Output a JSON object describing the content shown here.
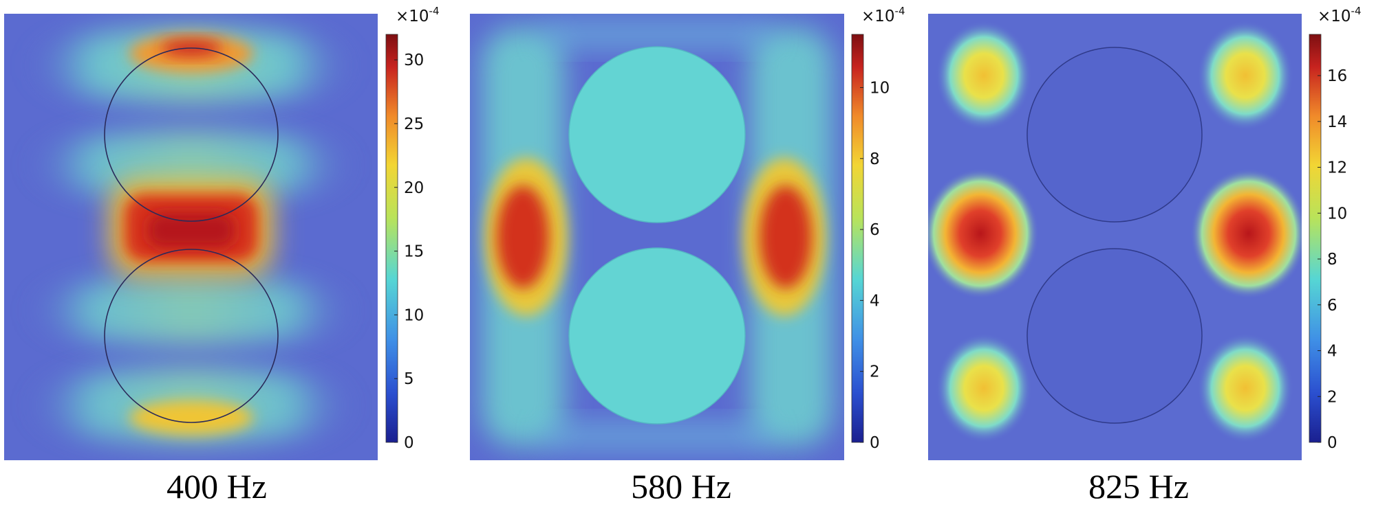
{
  "colors": {
    "colormap_stops": [
      "#1a1f8f",
      "#2b4fcf",
      "#3f8fe6",
      "#56d6d4",
      "#b9e35a",
      "#f2d534",
      "#f08a2a",
      "#c7231f",
      "#7d0f12"
    ],
    "background_field": "#5b6bd0"
  },
  "chart_data": [
    {
      "type": "heatmap",
      "title": "400 Hz",
      "colorbar": {
        "multiplier_base": "×10",
        "multiplier_exp": "-4",
        "ticks": [
          "0",
          "5",
          "10",
          "15",
          "20",
          "25",
          "30"
        ],
        "range": [
          0,
          32
        ]
      },
      "features": "two outlined circles stacked vertically; hot zone between circles"
    },
    {
      "type": "heatmap",
      "title": "580 Hz",
      "colorbar": {
        "multiplier_base": "×10",
        "multiplier_exp": "-4",
        "ticks": [
          "0",
          "2",
          "4",
          "6",
          "8",
          "10"
        ],
        "range": [
          0,
          11.5
        ]
      },
      "features": "two cyan-filled circles; hot lobes on left and right edges"
    },
    {
      "type": "heatmap",
      "title": "825 Hz",
      "colorbar": {
        "multiplier_base": "×10",
        "multiplier_exp": "-4",
        "ticks": [
          "0",
          "2",
          "4",
          "6",
          "8",
          "10",
          "12",
          "14",
          "16"
        ],
        "range": [
          0,
          17.8
        ]
      },
      "features": "two low-valued circles; six hot spots in corners and sides"
    }
  ]
}
